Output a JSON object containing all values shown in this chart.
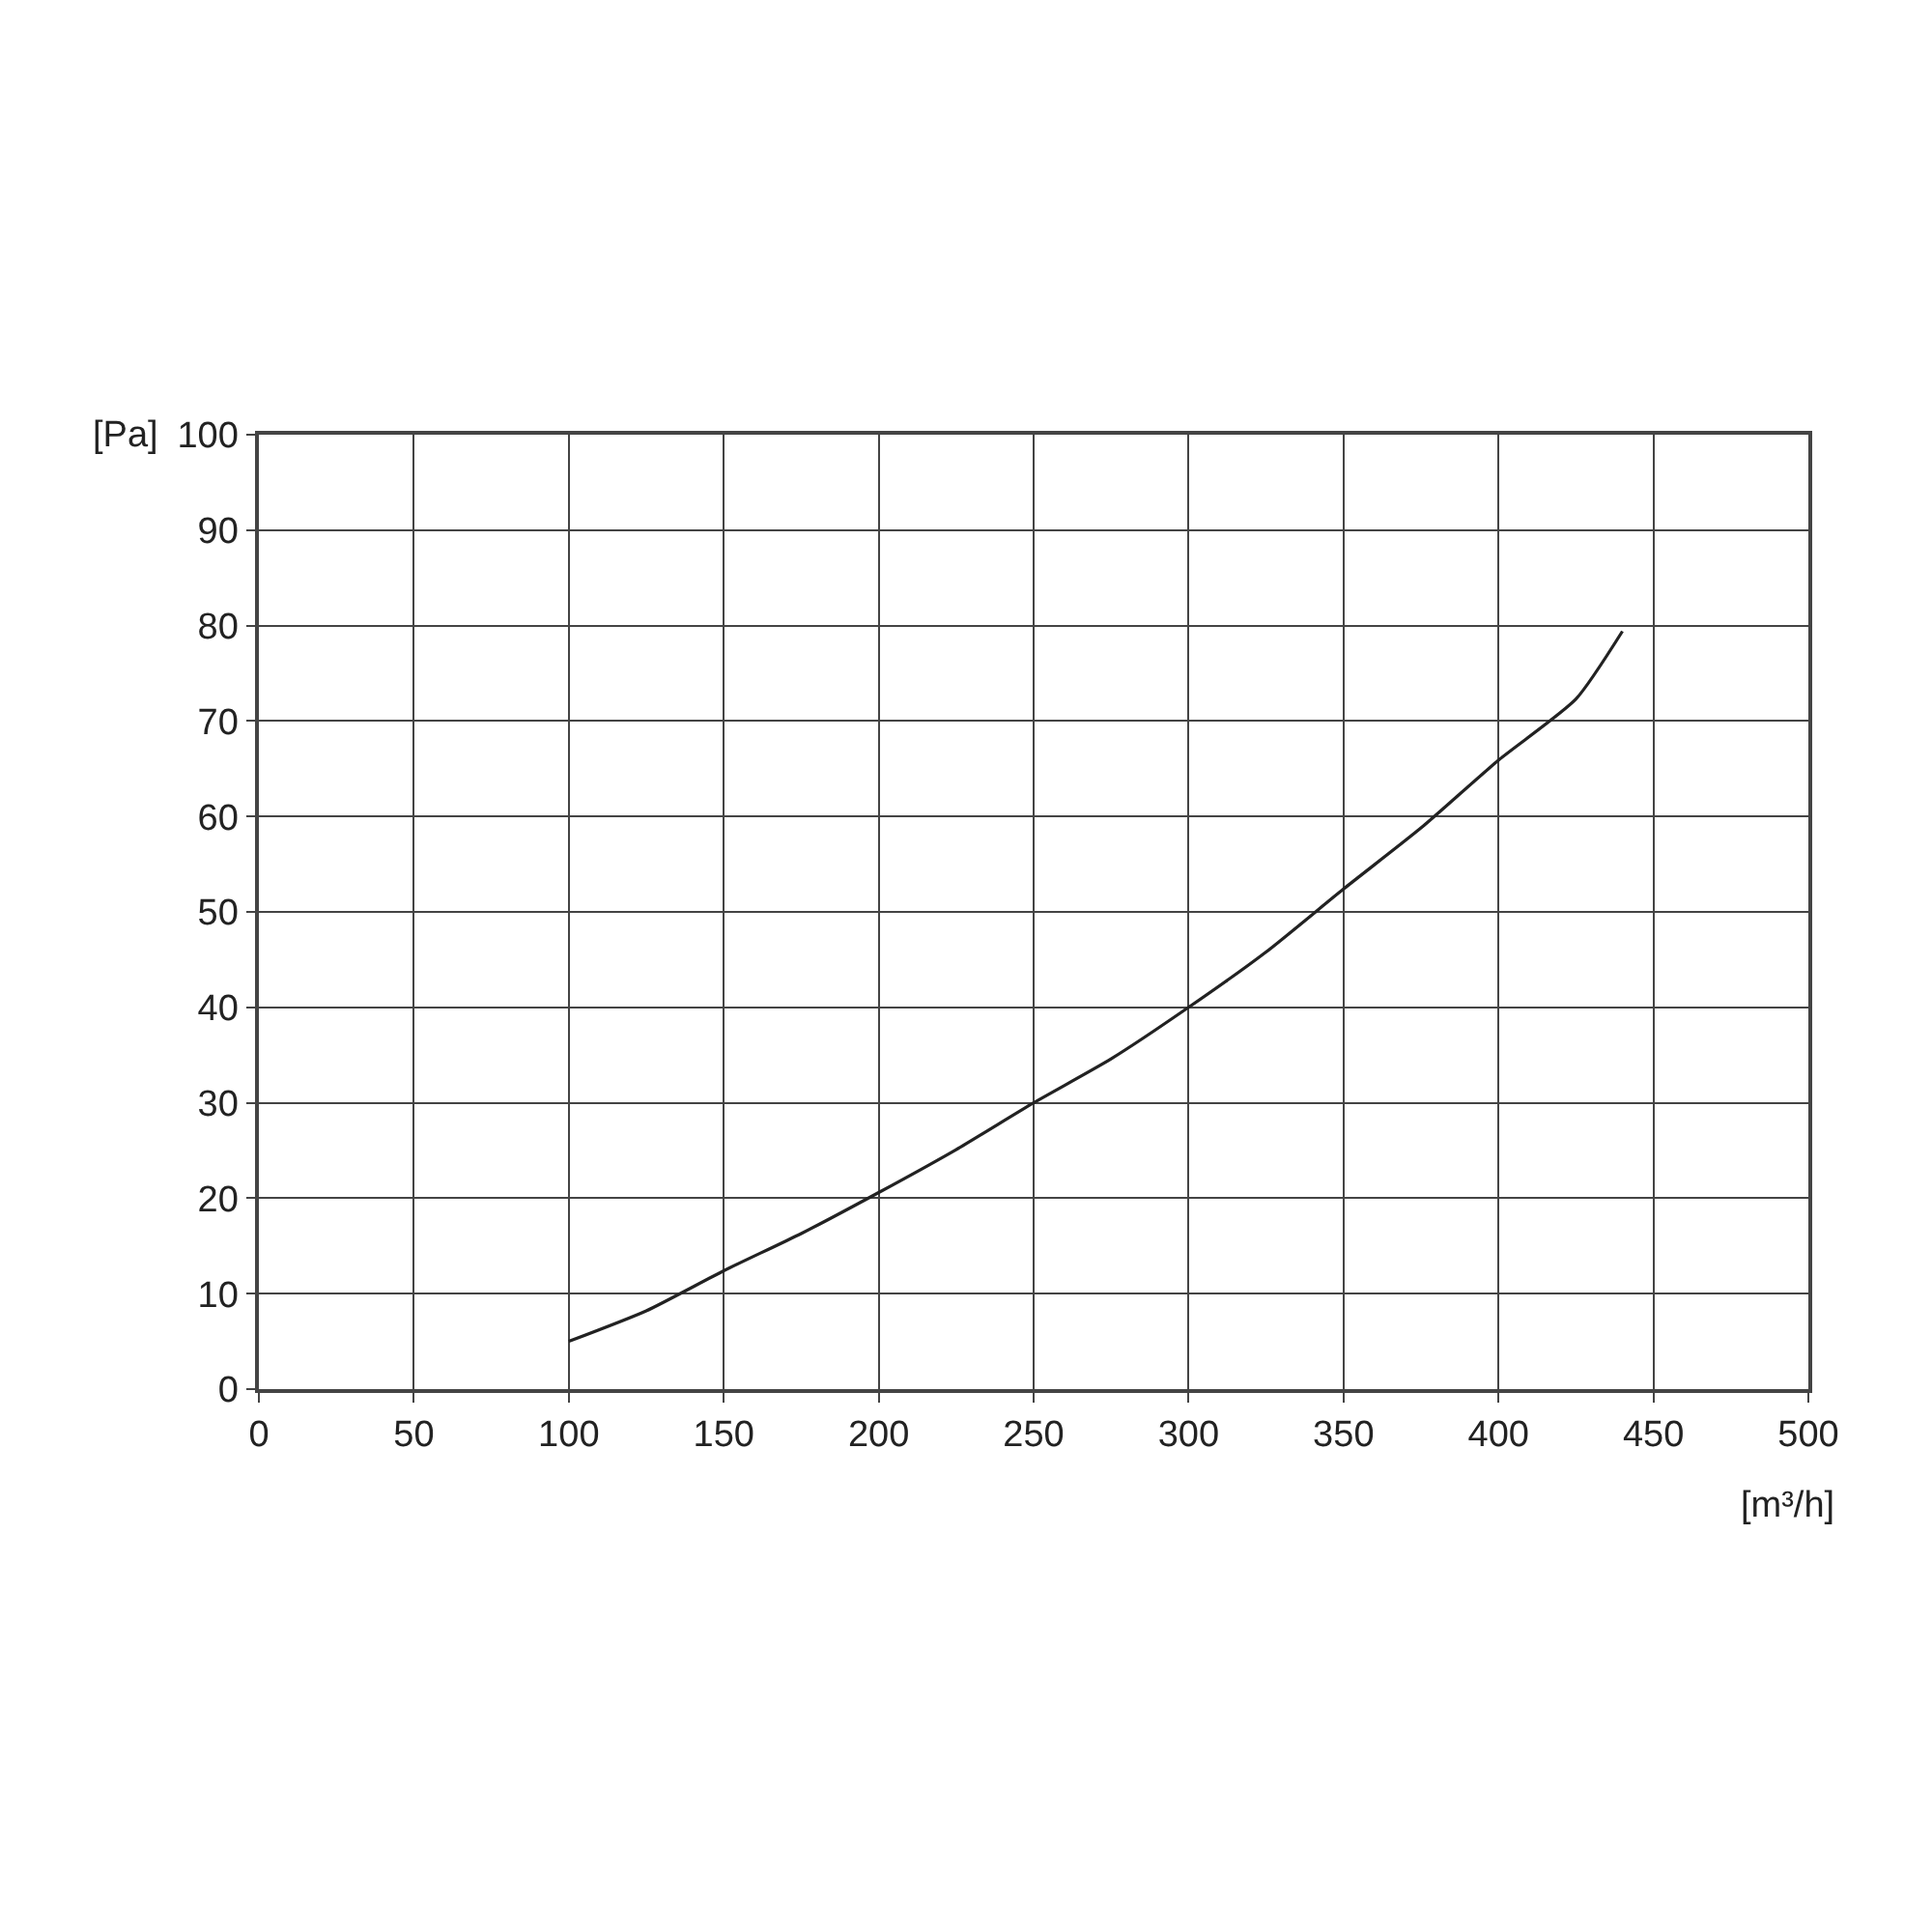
{
  "chart_data": {
    "type": "line",
    "xlabel": "[m³/h]",
    "ylabel": "[Pa]",
    "x": [
      100,
      125,
      150,
      175,
      200,
      225,
      250,
      275,
      300,
      325,
      350,
      375,
      400,
      425,
      440
    ],
    "series": [
      {
        "color": "#222222",
        "values": [
          5,
          8.2,
          12.4,
          16.3,
          20.6,
          25.1,
          30,
          34.6,
          40,
          45.8,
          52.4,
          58.8,
          65.9,
          72.3,
          79.4
        ]
      }
    ],
    "xlim": [
      0,
      500
    ],
    "xticks": [
      0,
      50,
      100,
      150,
      200,
      250,
      300,
      350,
      400,
      450,
      500
    ],
    "ylim": [
      0,
      100
    ],
    "yticks": [
      0,
      10,
      20,
      30,
      40,
      50,
      60,
      70,
      80,
      90,
      100
    ],
    "grid": true,
    "marker": "none",
    "line_style": "solid"
  }
}
